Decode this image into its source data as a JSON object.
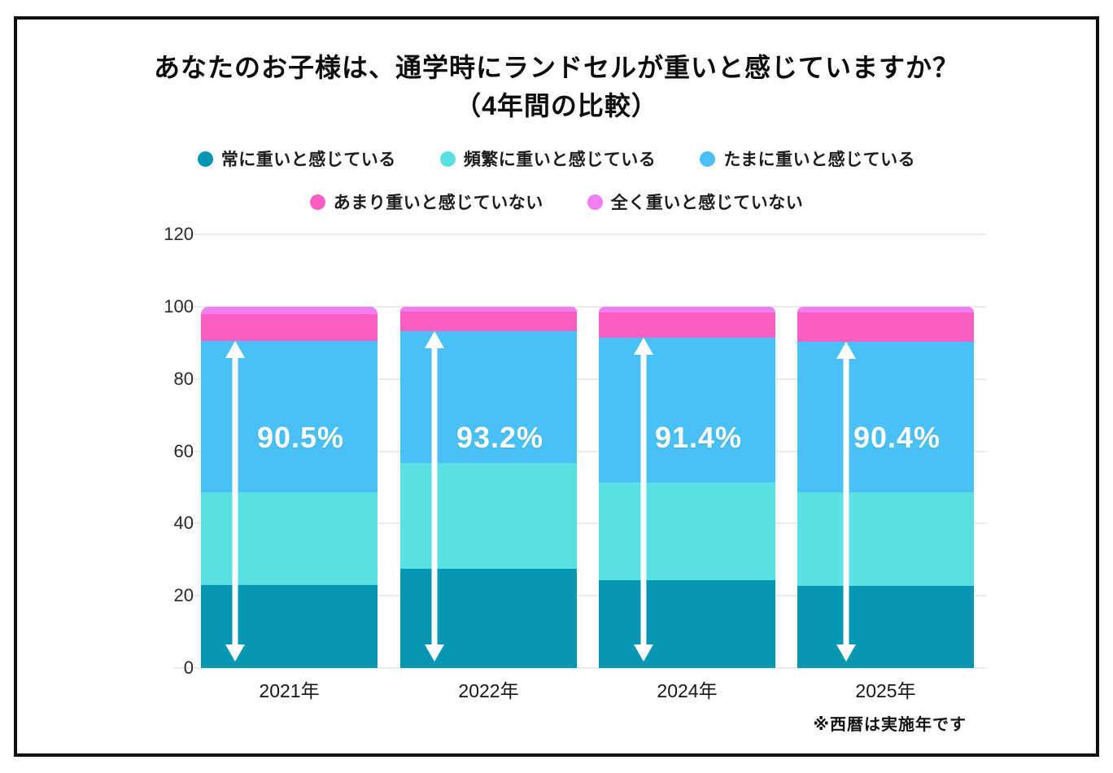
{
  "title": {
    "line1": "あなたのお子様は、通学時にランドセルが重いと感じていますか？",
    "line2": "（4年間の比較）"
  },
  "legend": {
    "rows": [
      [
        {
          "label": "常に重いと感じている",
          "color": "#0496b2"
        },
        {
          "label": "頻繁に重いと感じている",
          "color": "#5adfe2"
        },
        {
          "label": "たまに重いと感じている",
          "color": "#49c1f7"
        }
      ],
      [
        {
          "label": "あまり重いと感じていない",
          "color": "#fb5ec2"
        },
        {
          "label": "全く重いと感じていない",
          "color": "#ee7ef2"
        }
      ]
    ]
  },
  "chart_data": {
    "type": "bar",
    "stacked": true,
    "orientation": "vertical",
    "categories": [
      "2021年",
      "2022年",
      "2024年",
      "2025年"
    ],
    "series": [
      {
        "name": "常に重いと感じている",
        "color": "#0496b2",
        "values": [
          23.0,
          27.5,
          24.3,
          22.7
        ]
      },
      {
        "name": "頻繁に重いと感じている",
        "color": "#5adfe2",
        "values": [
          25.6,
          29.3,
          27.1,
          25.9
        ]
      },
      {
        "name": "たまに重いと感じている",
        "color": "#49c1f7",
        "values": [
          41.9,
          36.4,
          40.0,
          41.8
        ]
      },
      {
        "name": "あまり重いと感じていない",
        "color": "#fb5ec2",
        "values": [
          7.5,
          5.4,
          7.0,
          8.0
        ]
      },
      {
        "name": "全く重いと感じていない",
        "color": "#ee7ef2",
        "values": [
          2.0,
          1.4,
          1.6,
          1.6
        ]
      }
    ],
    "annotations": {
      "heavy_totals": [
        90.5,
        93.2,
        91.4,
        90.4
      ],
      "heavy_total_labels": [
        "90.5%",
        "93.2%",
        "91.4%",
        "90.4%"
      ],
      "arrow_style": "white double-headed vertical arrow"
    },
    "yticks": [
      0,
      20,
      40,
      60,
      80,
      100,
      120
    ],
    "ylim": [
      0,
      120
    ],
    "grid": true,
    "legend_position": "top"
  },
  "footnote": "※西暦は実施年です"
}
